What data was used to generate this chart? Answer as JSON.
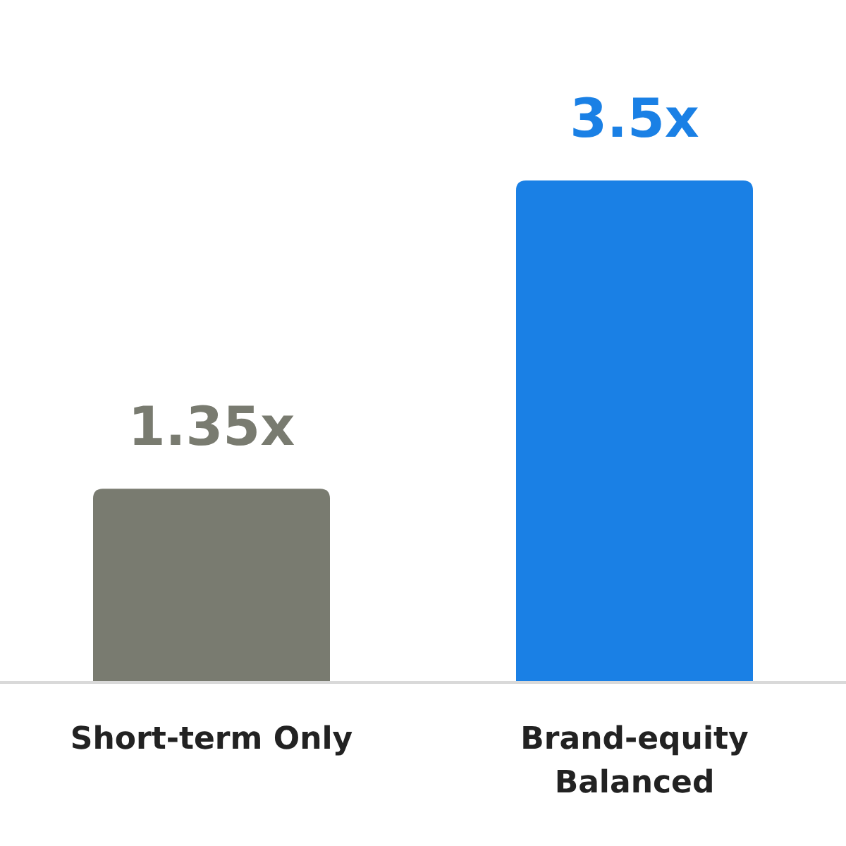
{
  "chart_data": {
    "type": "bar",
    "categories": [
      "Short-term Only",
      "Brand-equity Balanced"
    ],
    "values": [
      1.35,
      3.5
    ],
    "colors": [
      "#797b70",
      "#1a80e5"
    ],
    "value_labels": [
      "1.35x",
      "3.5x"
    ]
  }
}
